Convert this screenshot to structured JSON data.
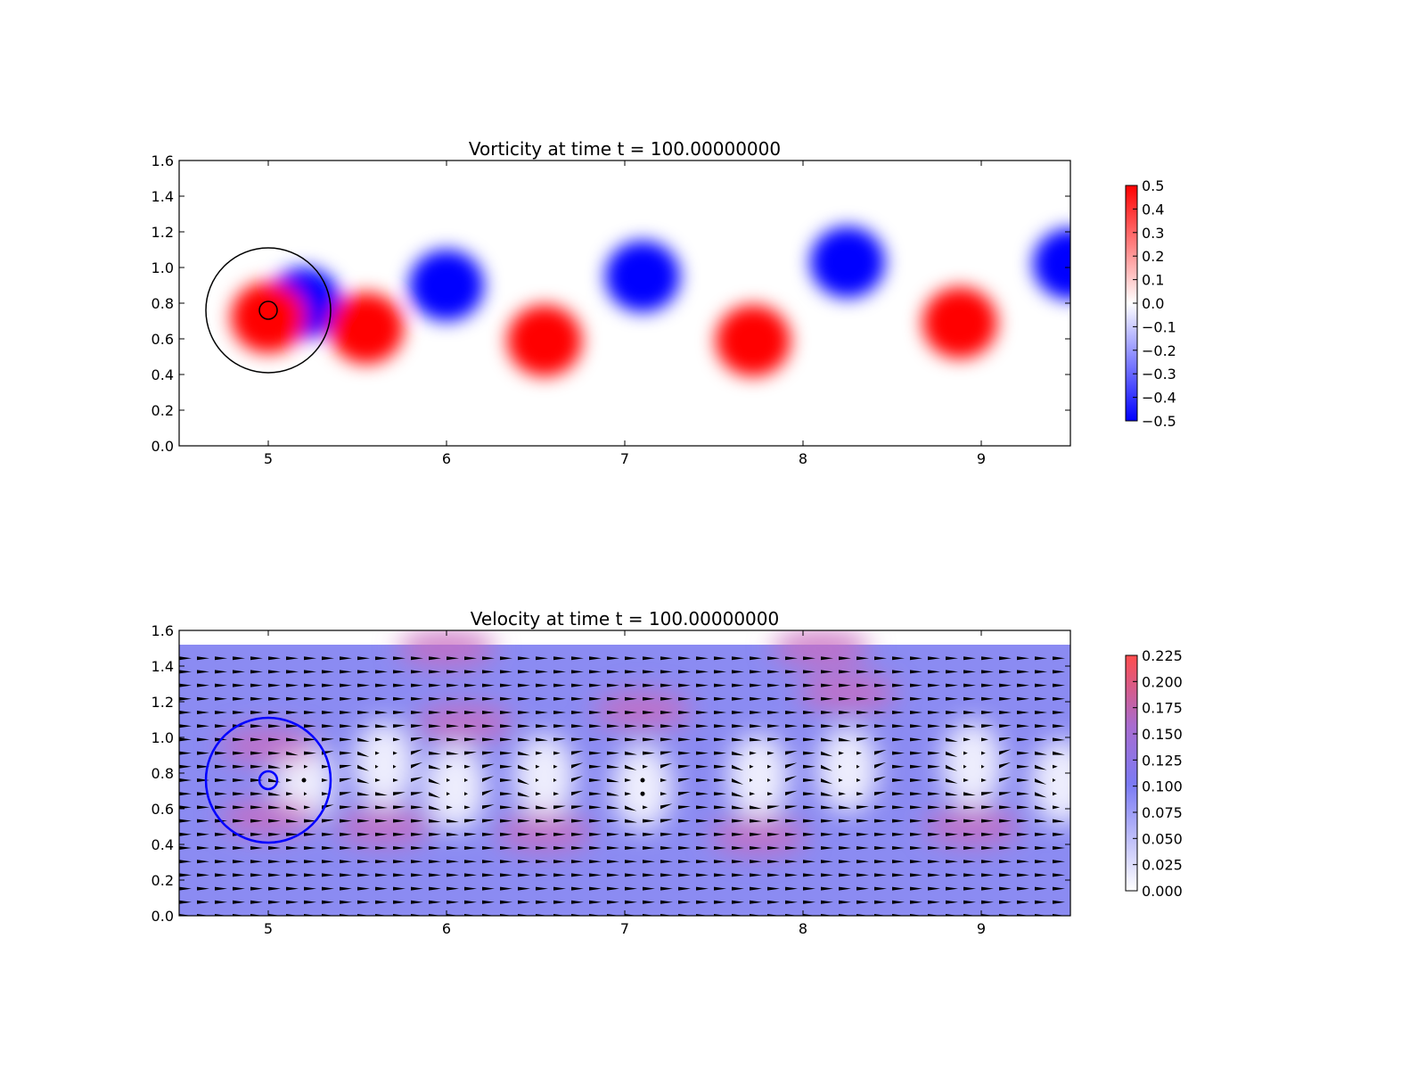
{
  "chart_data": [
    {
      "type": "heatmap",
      "title": "Vorticity at time t =   100.00000000",
      "xlim": [
        4.5,
        9.5
      ],
      "ylim": [
        0.0,
        1.6
      ],
      "x_ticks": [
        "5",
        "6",
        "7",
        "8",
        "9"
      ],
      "y_ticks": [
        "0.0",
        "0.2",
        "0.4",
        "0.6",
        "0.8",
        "1.0",
        "1.2",
        "1.4",
        "1.6"
      ],
      "colormap": "bwr",
      "colormap_colors": [
        "#0000ff",
        "#ffffff",
        "#ff0000"
      ],
      "colorbar_range": [
        -0.5,
        0.5
      ],
      "colorbar_ticks": [
        "0.5",
        "0.4",
        "0.3",
        "0.2",
        "0.1",
        "0.0",
        "−0.1",
        "−0.2",
        "−0.3",
        "−0.4",
        "−0.5"
      ],
      "overlay_circles": [
        {
          "cx": 5.0,
          "cy": 0.76,
          "r": 0.35,
          "color": "#000000"
        },
        {
          "cx": 5.0,
          "cy": 0.76,
          "r": 0.05,
          "color": "#000000"
        }
      ],
      "vortices": [
        {
          "x": 5.2,
          "y": 0.8,
          "value": -0.5
        },
        {
          "x": 5.0,
          "y": 0.72,
          "value": 0.5
        },
        {
          "x": 5.55,
          "y": 0.66,
          "value": 0.5
        },
        {
          "x": 6.0,
          "y": 0.9,
          "value": -0.5
        },
        {
          "x": 6.55,
          "y": 0.59,
          "value": 0.5
        },
        {
          "x": 7.1,
          "y": 0.95,
          "value": -0.5
        },
        {
          "x": 7.72,
          "y": 0.59,
          "value": 0.5
        },
        {
          "x": 8.25,
          "y": 1.03,
          "value": -0.5
        },
        {
          "x": 8.88,
          "y": 0.69,
          "value": 0.5
        },
        {
          "x": 9.5,
          "y": 1.02,
          "value": -0.5
        }
      ],
      "grid": false
    },
    {
      "type": "heatmap",
      "title": "Velocity at time t =   100.00000000",
      "xlim": [
        4.5,
        9.5
      ],
      "ylim": [
        0.0,
        1.6
      ],
      "x_ticks": [
        "5",
        "6",
        "7",
        "8",
        "9"
      ],
      "y_ticks": [
        "0.0",
        "0.2",
        "0.4",
        "0.6",
        "0.8",
        "1.0",
        "1.2",
        "1.4",
        "1.6"
      ],
      "field_extent_y": [
        0.0,
        1.52
      ],
      "colormap_colors": [
        "#ffffff",
        "#7b7bf4",
        "#ff4d4d"
      ],
      "colorbar_range": [
        0.0,
        0.225
      ],
      "colorbar_ticks": [
        "0.225",
        "0.200",
        "0.175",
        "0.150",
        "0.125",
        "0.100",
        "0.075",
        "0.050",
        "0.025",
        "0.000"
      ],
      "base_speed": 0.1,
      "quiver": true,
      "overlay_circles": [
        {
          "cx": 5.0,
          "cy": 0.76,
          "r": 0.35,
          "color": "#0000ff"
        },
        {
          "cx": 5.0,
          "cy": 0.76,
          "r": 0.05,
          "color": "#0000ff"
        }
      ],
      "low_speed_regions": [
        {
          "x": 5.2,
          "y": 0.75
        },
        {
          "x": 5.65,
          "y": 0.85
        },
        {
          "x": 6.05,
          "y": 0.72
        },
        {
          "x": 6.55,
          "y": 0.78
        },
        {
          "x": 7.1,
          "y": 0.72
        },
        {
          "x": 7.75,
          "y": 0.78
        },
        {
          "x": 8.25,
          "y": 0.82
        },
        {
          "x": 8.95,
          "y": 0.85
        },
        {
          "x": 9.45,
          "y": 0.75
        }
      ],
      "high_speed_regions": [
        {
          "x": 5.0,
          "y": 0.95
        },
        {
          "x": 5.0,
          "y": 0.55
        },
        {
          "x": 5.65,
          "y": 0.5
        },
        {
          "x": 6.1,
          "y": 1.08
        },
        {
          "x": 6.55,
          "y": 0.47
        },
        {
          "x": 7.1,
          "y": 1.15
        },
        {
          "x": 7.75,
          "y": 0.45
        },
        {
          "x": 8.25,
          "y": 1.25
        },
        {
          "x": 8.95,
          "y": 0.5
        },
        {
          "x": 6.0,
          "y": 1.5
        },
        {
          "x": 8.1,
          "y": 1.5
        }
      ],
      "grid": false
    }
  ]
}
